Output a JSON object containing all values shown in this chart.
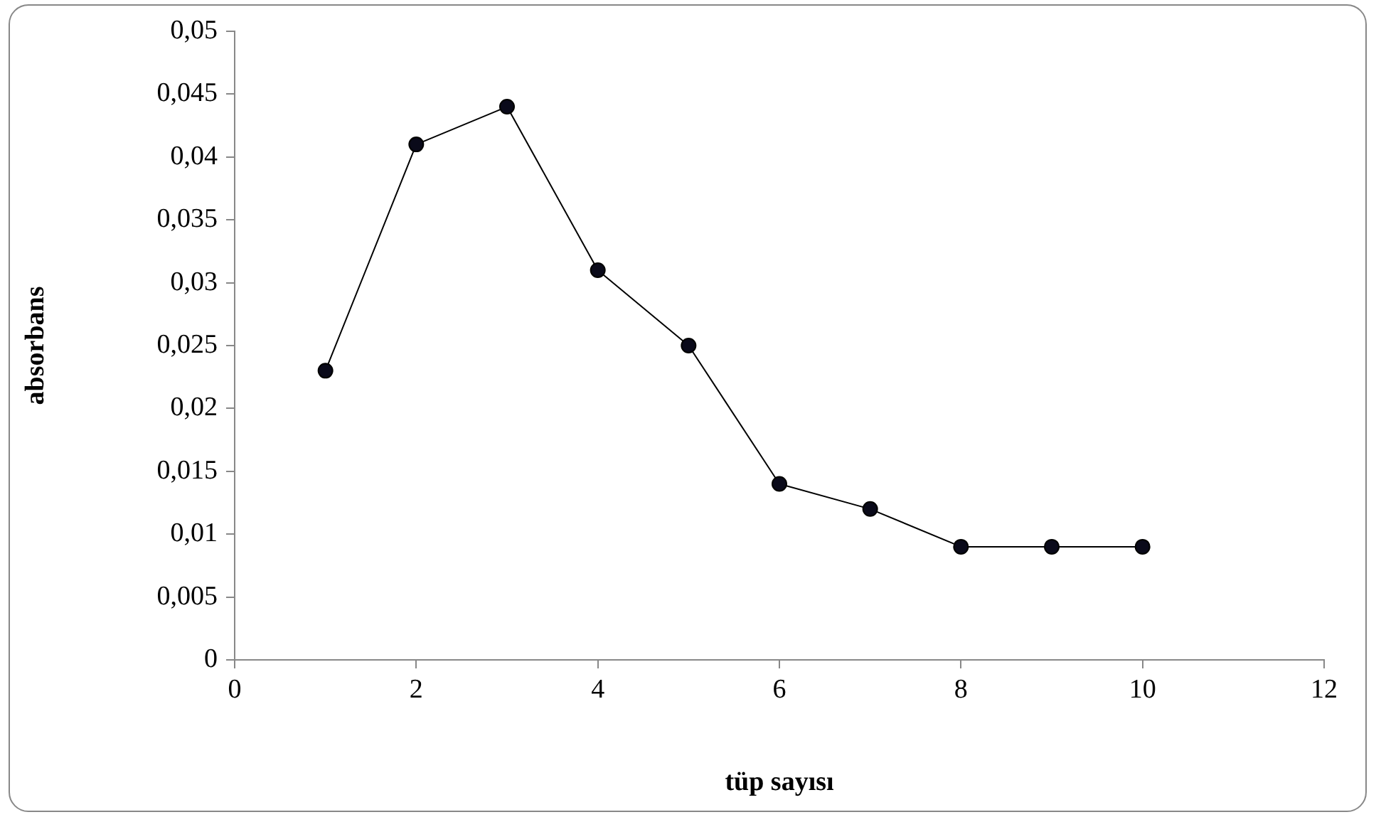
{
  "chart_data": {
    "type": "line",
    "xlabel": "tüp sayısı",
    "ylabel": "absorbans",
    "x": [
      1,
      2,
      3,
      4,
      5,
      6,
      7,
      8,
      9,
      10
    ],
    "series": [
      {
        "color": "#000000",
        "values": [
          0.023,
          0.041,
          0.044,
          0.031,
          0.025,
          0.014,
          0.012,
          0.009,
          0.009,
          0.009
        ]
      }
    ],
    "xlim": [
      0,
      12
    ],
    "xticks": [
      0,
      2,
      4,
      6,
      8,
      10,
      12
    ],
    "ylim": [
      0,
      0.05
    ],
    "yticks": [
      0,
      {
        "value": 0.005,
        "label": "0,005"
      },
      {
        "value": 0.01,
        "label": "0,01"
      },
      {
        "value": 0.015,
        "label": "0,015"
      },
      {
        "value": 0.02,
        "label": "0,02"
      },
      {
        "value": 0.025,
        "label": "0,025"
      },
      {
        "value": 0.03,
        "label": "0,03"
      },
      {
        "value": 0.035,
        "label": "0,035"
      },
      {
        "value": 0.04,
        "label": "0,04"
      },
      {
        "value": 0.045,
        "label": "0,045"
      },
      {
        "value": 0.05,
        "label": "0,05"
      }
    ],
    "marker": "circle",
    "line_style": "solid",
    "legend": false
  }
}
